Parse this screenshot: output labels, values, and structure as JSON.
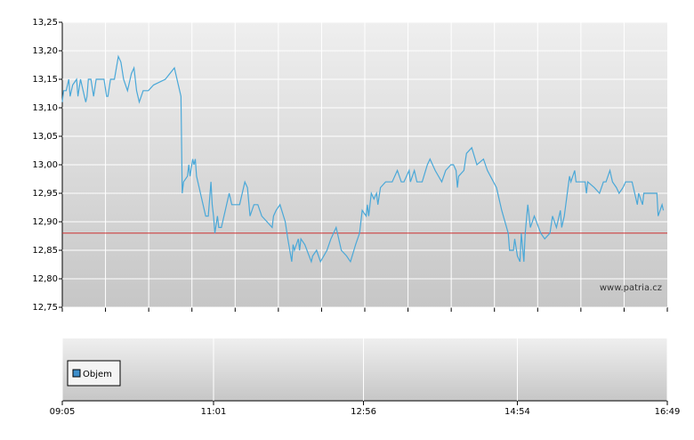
{
  "chart_data": {
    "type": "line",
    "color": "#4aa8d8",
    "x": [
      545,
      546,
      548,
      550,
      551,
      553,
      556,
      557,
      559,
      561,
      563,
      564,
      565,
      567,
      569,
      571,
      574,
      577,
      579,
      580,
      582,
      585,
      588,
      590,
      592,
      595,
      598,
      600,
      602,
      604,
      607,
      611,
      615,
      624,
      631,
      635,
      636,
      637,
      638,
      641,
      642,
      643,
      645,
      646,
      647,
      648,
      651,
      654,
      655,
      657,
      659,
      660,
      661,
      662,
      664,
      665,
      667,
      670,
      673,
      675,
      681,
      685,
      687,
      689,
      692,
      695,
      698,
      702,
      706,
      707,
      709,
      712,
      716,
      718,
      721,
      722,
      723,
      726,
      727,
      728,
      731,
      736,
      737,
      740,
      743,
      748,
      751,
      755,
      759,
      763,
      766,
      770,
      773,
      775,
      778,
      779,
      780,
      782,
      784,
      786,
      787,
      789,
      793,
      798,
      802,
      805,
      807,
      811,
      812,
      815,
      817,
      821,
      825,
      827,
      831,
      836,
      839,
      843,
      845,
      847,
      848,
      849,
      853,
      855,
      859,
      863,
      868,
      871,
      878,
      882,
      887,
      888,
      891,
      892,
      894,
      896,
      897,
      899,
      900,
      902,
      904,
      907,
      912,
      915,
      919,
      921,
      924,
      927,
      928,
      930,
      934,
      935,
      938,
      939,
      946,
      947,
      948,
      953,
      957,
      960,
      962,
      965,
      967,
      970,
      972,
      975,
      977,
      982,
      986,
      987,
      990,
      991,
      995,
      1001,
      1002,
      1005,
      1006
    ],
    "values": [
      13.11,
      13.13,
      13.13,
      13.15,
      13.12,
      13.14,
      13.15,
      13.12,
      13.15,
      13.13,
      13.11,
      13.12,
      13.15,
      13.15,
      13.12,
      13.15,
      13.15,
      13.15,
      13.12,
      13.12,
      13.15,
      13.15,
      13.19,
      13.18,
      13.15,
      13.13,
      13.16,
      13.17,
      13.13,
      13.11,
      13.13,
      13.13,
      13.14,
      13.15,
      13.17,
      13.13,
      13.12,
      12.95,
      12.97,
      12.98,
      13.0,
      12.98,
      13.01,
      13.0,
      13.01,
      12.98,
      12.95,
      12.92,
      12.91,
      12.91,
      12.97,
      12.93,
      12.91,
      12.88,
      12.91,
      12.89,
      12.89,
      12.92,
      12.95,
      12.93,
      12.93,
      12.97,
      12.96,
      12.91,
      12.93,
      12.93,
      12.91,
      12.9,
      12.89,
      12.91,
      12.92,
      12.93,
      12.9,
      12.87,
      12.83,
      12.86,
      12.85,
      12.87,
      12.85,
      12.87,
      12.86,
      12.83,
      12.84,
      12.85,
      12.83,
      12.85,
      12.87,
      12.89,
      12.85,
      12.84,
      12.83,
      12.86,
      12.88,
      12.92,
      12.91,
      12.93,
      12.91,
      12.95,
      12.94,
      12.95,
      12.93,
      12.96,
      12.97,
      12.97,
      12.99,
      12.97,
      12.97,
      12.99,
      12.97,
      12.99,
      12.97,
      12.97,
      13.0,
      13.01,
      12.99,
      12.97,
      12.99,
      13.0,
      13.0,
      12.99,
      12.96,
      12.98,
      12.99,
      13.02,
      13.03,
      13.0,
      13.01,
      12.99,
      12.96,
      12.92,
      12.88,
      12.85,
      12.85,
      12.87,
      12.84,
      12.83,
      12.88,
      12.83,
      12.88,
      12.93,
      12.89,
      12.91,
      12.88,
      12.87,
      12.88,
      12.91,
      12.89,
      12.92,
      12.89,
      12.91,
      12.98,
      12.97,
      12.99,
      12.97,
      12.97,
      12.95,
      12.97,
      12.96,
      12.95,
      12.97,
      12.97,
      12.99,
      12.97,
      12.96,
      12.95,
      12.96,
      12.97,
      12.97,
      12.93,
      12.95,
      12.93,
      12.95,
      12.95,
      12.95,
      12.91,
      12.93,
      12.92
    ],
    "reference_line": {
      "value": 12.88,
      "color": "#cc3333"
    },
    "xlim": [
      545,
      1009
    ],
    "xticks": [
      {
        "value": 545,
        "label": "09:05"
      },
      {
        "value": 661,
        "label": "11:01"
      },
      {
        "value": 776,
        "label": "12:56"
      },
      {
        "value": 894,
        "label": "14:54"
      },
      {
        "value": 1009,
        "label": "16:49"
      }
    ],
    "ylim": [
      12.75,
      13.25
    ],
    "yticks": [
      {
        "value": 12.75,
        "label": "12,75"
      },
      {
        "value": 12.8,
        "label": "12,80"
      },
      {
        "value": 12.85,
        "label": "12,85"
      },
      {
        "value": 12.9,
        "label": "12,90"
      },
      {
        "value": 12.95,
        "label": "12,95"
      },
      {
        "value": 13.0,
        "label": "13,00"
      },
      {
        "value": 13.05,
        "label": "13,05"
      },
      {
        "value": 13.1,
        "label": "13,10"
      },
      {
        "value": 13.15,
        "label": "13,15"
      },
      {
        "value": 13.2,
        "label": "13,20"
      },
      {
        "value": 13.25,
        "label": "13,25"
      }
    ],
    "grid": true,
    "volume_legend": {
      "name": "Objem",
      "color": "#3d8ecb"
    },
    "watermark": "www.patria.cz"
  }
}
